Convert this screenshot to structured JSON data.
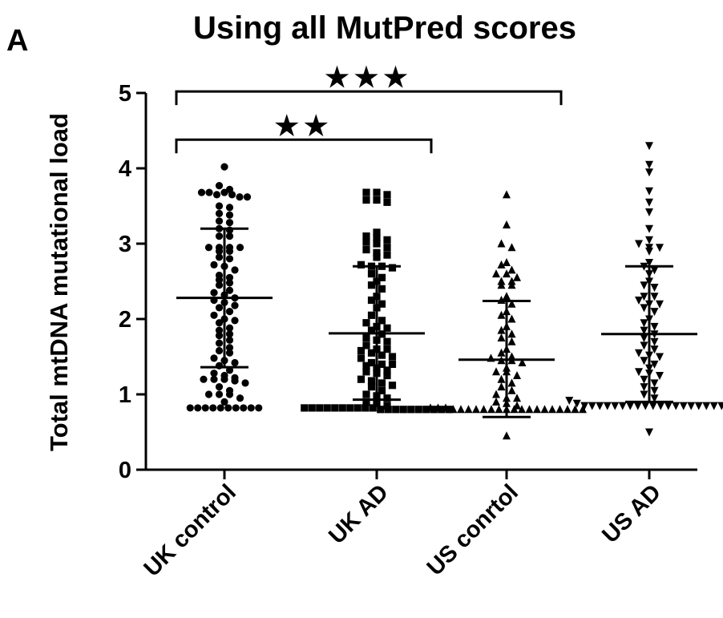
{
  "panel_label": "A",
  "chart_data": {
    "type": "scatter",
    "title": "Using all MutPred scores",
    "xlabel": "",
    "ylabel": "Total mtDNA mutational load",
    "ylim": [
      0,
      5
    ],
    "yticks": [
      "0",
      "1",
      "2",
      "3",
      "4",
      "5"
    ],
    "grid": false,
    "legend": "none",
    "categories": [
      "UK control",
      "UK AD",
      "US conrtol",
      "US AD"
    ],
    "groups": [
      {
        "category": "UK control",
        "marker": "circle",
        "mean": 2.28,
        "sd_low": 1.36,
        "sd_high": 3.2,
        "values": [
          4.02,
          3.77,
          3.72,
          3.68,
          3.68,
          3.65,
          3.68,
          3.65,
          3.62,
          3.62,
          3.5,
          3.48,
          3.4,
          3.38,
          3.3,
          3.28,
          3.2,
          3.18,
          3.1,
          3.1,
          2.95,
          2.95,
          2.95,
          2.95,
          2.9,
          2.9,
          2.82,
          2.8,
          2.72,
          2.7,
          2.65,
          2.58,
          2.55,
          2.52,
          2.48,
          2.45,
          2.38,
          2.35,
          2.32,
          2.28,
          2.25,
          2.22,
          2.18,
          2.15,
          2.1,
          2.05,
          2.0,
          1.98,
          1.95,
          1.88,
          1.85,
          1.8,
          1.78,
          1.72,
          1.68,
          1.62,
          1.58,
          1.55,
          1.48,
          1.45,
          1.42,
          1.38,
          1.32,
          1.28,
          1.25,
          1.22,
          1.2,
          1.2,
          1.2,
          1.18,
          1.15,
          1.1,
          1.05,
          1.0,
          1.0,
          1.0,
          0.95,
          0.9,
          0.82,
          0.82,
          0.82,
          0.82,
          0.82,
          0.82,
          0.82,
          0.82,
          0.82,
          0.82
        ]
      },
      {
        "category": "UK AD",
        "marker": "square",
        "mean": 1.81,
        "sd_low": 0.93,
        "sd_high": 2.7,
        "values": [
          3.68,
          3.68,
          3.65,
          3.58,
          3.58,
          3.55,
          3.15,
          3.1,
          3.08,
          3.05,
          3.02,
          3.0,
          2.95,
          2.92,
          2.88,
          2.85,
          2.82,
          2.72,
          2.7,
          2.7,
          2.68,
          2.6,
          2.55,
          2.5,
          2.45,
          2.4,
          2.3,
          2.25,
          2.2,
          2.15,
          2.05,
          1.98,
          1.95,
          1.9,
          1.88,
          1.85,
          1.8,
          1.75,
          1.72,
          1.7,
          1.65,
          1.6,
          1.6,
          1.58,
          1.55,
          1.52,
          1.5,
          1.48,
          1.42,
          1.4,
          1.4,
          1.38,
          1.35,
          1.32,
          1.3,
          1.28,
          1.25,
          1.2,
          1.18,
          1.15,
          1.12,
          1.1,
          1.05,
          1.0,
          0.98,
          0.95,
          0.9,
          0.88,
          0.85,
          0.82,
          0.82,
          0.82,
          0.82,
          0.82,
          0.82,
          0.82,
          0.82,
          0.82,
          0.82,
          0.8,
          0.8,
          0.8,
          0.8,
          0.8,
          0.8,
          0.8,
          0.8,
          0.8,
          0.8
        ]
      },
      {
        "category": "US conrtol",
        "marker": "triangle-up",
        "mean": 1.46,
        "sd_low": 0.7,
        "sd_high": 2.24,
        "values": [
          3.65,
          3.25,
          3.0,
          2.95,
          2.75,
          2.72,
          2.65,
          2.6,
          2.6,
          2.55,
          2.5,
          2.5,
          2.45,
          2.45,
          2.3,
          2.25,
          2.2,
          2.1,
          2.05,
          2.0,
          1.9,
          1.85,
          1.8,
          1.75,
          1.7,
          1.6,
          1.55,
          1.5,
          1.48,
          1.45,
          1.45,
          1.42,
          1.35,
          1.3,
          1.3,
          1.25,
          1.2,
          1.15,
          1.1,
          1.05,
          1.0,
          0.95,
          0.95,
          0.9,
          0.88,
          0.85,
          0.82,
          0.82,
          0.82,
          0.8,
          0.8,
          0.8,
          0.8,
          0.8,
          0.8,
          0.8,
          0.8,
          0.8,
          0.8,
          0.8,
          0.8,
          0.8,
          0.8,
          0.8,
          0.8,
          0.8,
          0.8,
          0.45
        ]
      },
      {
        "category": "US AD",
        "marker": "triangle-down",
        "mean": 1.8,
        "sd_low": 0.9,
        "sd_high": 2.7,
        "values": [
          4.3,
          4.05,
          3.95,
          3.7,
          3.55,
          3.42,
          3.2,
          3.05,
          3.0,
          2.95,
          2.95,
          2.9,
          2.75,
          2.7,
          2.65,
          2.6,
          2.5,
          2.45,
          2.42,
          2.3,
          2.3,
          2.25,
          2.2,
          2.2,
          2.15,
          2.1,
          2.0,
          1.95,
          1.9,
          1.85,
          1.8,
          1.75,
          1.7,
          1.65,
          1.6,
          1.55,
          1.52,
          1.5,
          1.45,
          1.4,
          1.35,
          1.3,
          1.28,
          1.25,
          1.2,
          1.15,
          1.1,
          1.05,
          1.0,
          0.95,
          0.92,
          0.88,
          0.85,
          0.85,
          0.85,
          0.85,
          0.85,
          0.85,
          0.85,
          0.85,
          0.85,
          0.85,
          0.85,
          0.85,
          0.85,
          0.85,
          0.85,
          0.85,
          0.85,
          0.85,
          0.85,
          0.85,
          0.5
        ]
      }
    ],
    "annotations": [
      {
        "from": "UK control",
        "to": "UK AD",
        "y": 4.38,
        "text": "★★"
      },
      {
        "from": "UK control",
        "to": "US conrtol",
        "y": 5.02,
        "text": "★★★"
      }
    ]
  }
}
